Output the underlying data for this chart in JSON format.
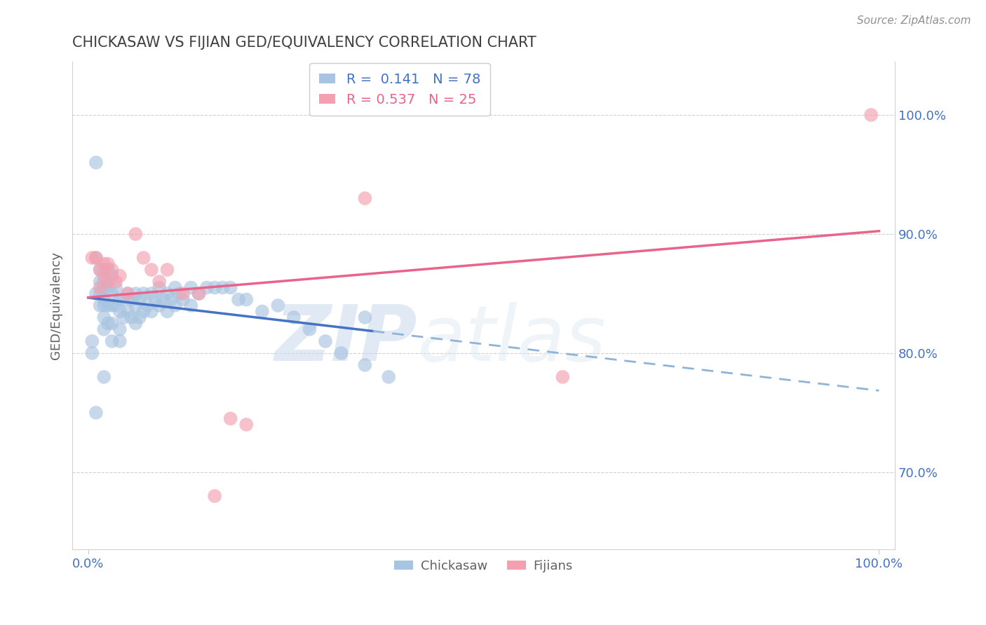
{
  "title": "CHICKASAW VS FIJIAN GED/EQUIVALENCY CORRELATION CHART",
  "ylabel": "GED/Equivalency",
  "source": "Source: ZipAtlas.com",
  "watermark_zip": "ZIP",
  "watermark_atlas": "atlas",
  "xlim": [
    -0.02,
    1.02
  ],
  "ylim": [
    0.635,
    1.045
  ],
  "yticks": [
    0.7,
    0.8,
    0.9,
    1.0
  ],
  "ytick_labels": [
    "70.0%",
    "80.0%",
    "90.0%",
    "100.0%"
  ],
  "xticks": [
    0.0,
    1.0
  ],
  "xtick_labels": [
    "0.0%",
    "100.0%"
  ],
  "chickasaw_color": "#a8c4e0",
  "fijian_color": "#f4a0b0",
  "chickasaw_R": 0.141,
  "chickasaw_N": 78,
  "fijian_R": 0.537,
  "fijian_N": 25,
  "legend_label_1": "R =  0.141   N = 78",
  "legend_label_2": "R = 0.537   N = 25",
  "chickasaw_x": [
    0.005,
    0.01,
    0.01,
    0.01,
    0.015,
    0.015,
    0.015,
    0.015,
    0.02,
    0.02,
    0.02,
    0.02,
    0.02,
    0.02,
    0.02,
    0.025,
    0.025,
    0.025,
    0.025,
    0.03,
    0.03,
    0.03,
    0.03,
    0.03,
    0.035,
    0.035,
    0.04,
    0.04,
    0.04,
    0.04,
    0.045,
    0.045,
    0.05,
    0.05,
    0.055,
    0.055,
    0.06,
    0.06,
    0.06,
    0.065,
    0.065,
    0.07,
    0.07,
    0.075,
    0.08,
    0.08,
    0.085,
    0.09,
    0.09,
    0.095,
    0.1,
    0.1,
    0.105,
    0.11,
    0.11,
    0.115,
    0.12,
    0.13,
    0.13,
    0.14,
    0.15,
    0.16,
    0.17,
    0.18,
    0.19,
    0.2,
    0.22,
    0.24,
    0.26,
    0.28,
    0.3,
    0.32,
    0.35,
    0.38,
    0.005,
    0.01,
    0.02,
    0.35
  ],
  "chickasaw_y": [
    0.81,
    0.96,
    0.88,
    0.85,
    0.87,
    0.86,
    0.85,
    0.84,
    0.87,
    0.86,
    0.855,
    0.845,
    0.84,
    0.83,
    0.82,
    0.87,
    0.855,
    0.84,
    0.825,
    0.865,
    0.85,
    0.84,
    0.825,
    0.81,
    0.855,
    0.84,
    0.845,
    0.835,
    0.82,
    0.81,
    0.845,
    0.83,
    0.85,
    0.835,
    0.845,
    0.83,
    0.85,
    0.84,
    0.825,
    0.845,
    0.83,
    0.85,
    0.835,
    0.84,
    0.85,
    0.835,
    0.845,
    0.855,
    0.84,
    0.845,
    0.85,
    0.835,
    0.845,
    0.855,
    0.84,
    0.85,
    0.845,
    0.855,
    0.84,
    0.85,
    0.855,
    0.855,
    0.855,
    0.855,
    0.845,
    0.845,
    0.835,
    0.84,
    0.83,
    0.82,
    0.81,
    0.8,
    0.79,
    0.78,
    0.8,
    0.75,
    0.78,
    0.83
  ],
  "fijian_x": [
    0.005,
    0.01,
    0.015,
    0.015,
    0.02,
    0.02,
    0.025,
    0.025,
    0.03,
    0.035,
    0.04,
    0.05,
    0.06,
    0.07,
    0.08,
    0.09,
    0.1,
    0.12,
    0.14,
    0.16,
    0.18,
    0.2,
    0.35,
    0.6,
    0.99
  ],
  "fijian_y": [
    0.88,
    0.88,
    0.87,
    0.855,
    0.875,
    0.865,
    0.875,
    0.86,
    0.87,
    0.86,
    0.865,
    0.85,
    0.9,
    0.88,
    0.87,
    0.86,
    0.87,
    0.85,
    0.85,
    0.68,
    0.745,
    0.74,
    0.93,
    0.78,
    1.0
  ],
  "trend_blue_color": "#4472c4",
  "trend_pink_color": "#e8648a",
  "trend_dash_color": "#90b4d8",
  "grid_color": "#d0d0d0",
  "background_color": "#ffffff",
  "title_color": "#404040",
  "axis_label_color": "#606060",
  "tick_color": "#4472c4",
  "source_color": "#909090",
  "blue_solid_xlim": [
    0.0,
    0.36
  ],
  "blue_dash_xlim": [
    0.36,
    1.0
  ]
}
